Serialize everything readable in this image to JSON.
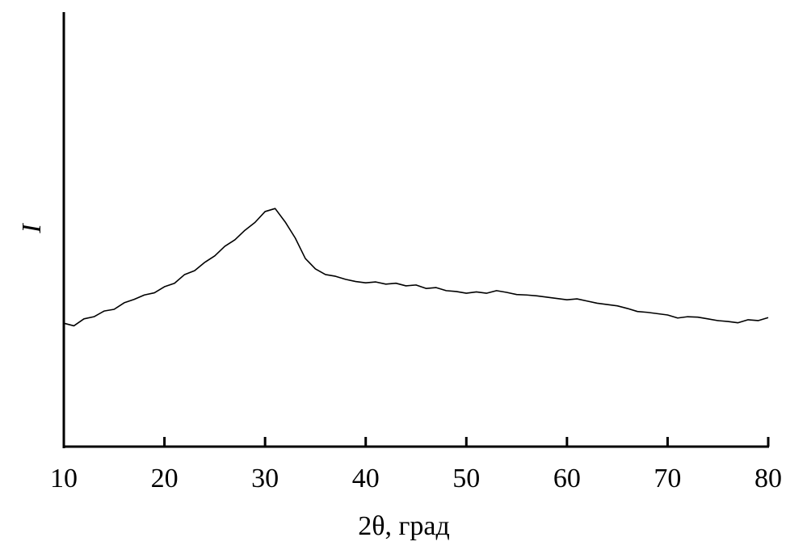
{
  "chart_data": {
    "type": "line",
    "x_label": "2θ, град",
    "y_label": "I",
    "x": [
      10,
      11,
      12,
      13,
      14,
      15,
      16,
      17,
      18,
      19,
      20,
      21,
      22,
      23,
      24,
      25,
      26,
      27,
      28,
      29,
      30,
      31,
      32,
      33,
      34,
      35,
      36,
      37,
      38,
      39,
      40,
      41,
      42,
      43,
      44,
      45,
      46,
      47,
      48,
      49,
      50,
      51,
      52,
      53,
      54,
      55,
      56,
      57,
      58,
      59,
      60,
      61,
      62,
      63,
      64,
      65,
      66,
      67,
      68,
      69,
      70,
      71,
      72,
      73,
      74,
      75,
      76,
      77,
      78,
      79,
      80
    ],
    "series": [
      {
        "color": "#000000",
        "values": [
          28.4,
          27.8,
          29.4,
          29.9,
          31.2,
          31.6,
          33.1,
          33.9,
          34.9,
          35.4,
          36.8,
          37.6,
          39.6,
          40.5,
          42.4,
          43.9,
          46.1,
          47.6,
          49.8,
          51.6,
          54.1,
          54.8,
          51.7,
          48.0,
          43.3,
          40.9,
          39.6,
          39.2,
          38.5,
          38.0,
          37.7,
          37.9,
          37.4,
          37.6,
          37.0,
          37.2,
          36.4,
          36.6,
          35.9,
          35.7,
          35.3,
          35.6,
          35.3,
          35.9,
          35.5,
          35.0,
          34.9,
          34.7,
          34.4,
          34.1,
          33.8,
          34.0,
          33.5,
          33.0,
          32.7,
          32.4,
          31.8,
          31.1,
          30.9,
          30.6,
          30.3,
          29.6,
          29.9,
          29.8,
          29.4,
          29.0,
          28.8,
          28.5,
          29.2,
          29.0,
          29.7
        ]
      }
    ],
    "xlim": [
      10,
      80
    ],
    "xticks": [
      10,
      20,
      30,
      40,
      50,
      60,
      70,
      80
    ],
    "ylim": [
      0,
      100
    ]
  }
}
